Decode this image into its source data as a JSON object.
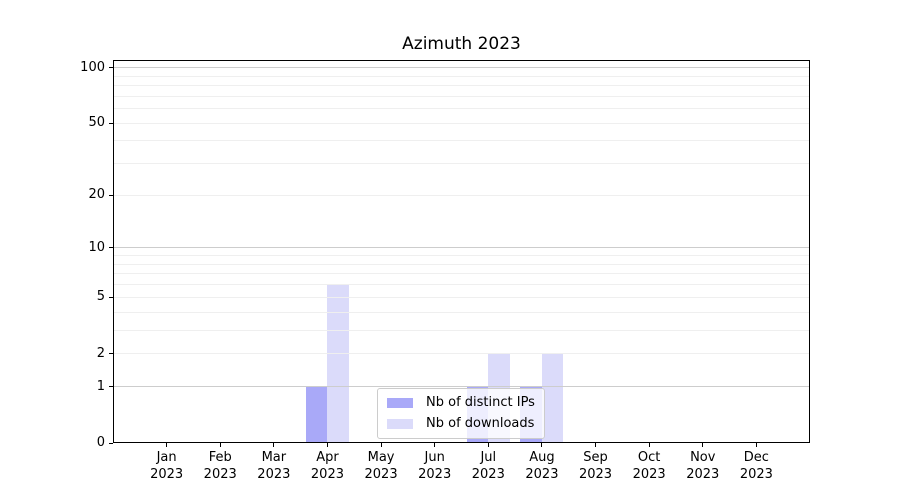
{
  "chart_data": {
    "type": "bar",
    "title": "Azimuth 2023",
    "categories": [
      "Jan",
      "Feb",
      "Mar",
      "Apr",
      "May",
      "Jun",
      "Jul",
      "Aug",
      "Sep",
      "Oct",
      "Nov",
      "Dec"
    ],
    "category_year": "2023",
    "series": [
      {
        "name": "Nb of distinct IPs",
        "color": "#a9a9f8",
        "values": [
          0,
          0,
          0,
          1,
          0,
          0,
          1,
          1,
          0,
          0,
          0,
          0
        ]
      },
      {
        "name": "Nb of downloads",
        "color": "#dbdbfa",
        "values": [
          0,
          0,
          0,
          6,
          0,
          0,
          2,
          2,
          0,
          0,
          0,
          0
        ]
      }
    ],
    "yscale": "log1p",
    "ylim": [
      0,
      110
    ],
    "yticks": [
      0,
      1,
      2,
      5,
      10,
      20,
      50,
      100
    ],
    "grid": {
      "major_values": [
        1,
        10,
        100
      ],
      "minor_values": [
        2,
        3,
        4,
        5,
        6,
        7,
        8,
        9,
        20,
        30,
        40,
        50,
        60,
        70,
        80,
        90
      ],
      "major_color": "#cdcdcd",
      "minor_color": "#efefef"
    },
    "legend_entries": [
      "Nb of distinct IPs",
      "Nb of downloads"
    ],
    "axes_color": "#000000",
    "background_color": "#ffffff"
  }
}
